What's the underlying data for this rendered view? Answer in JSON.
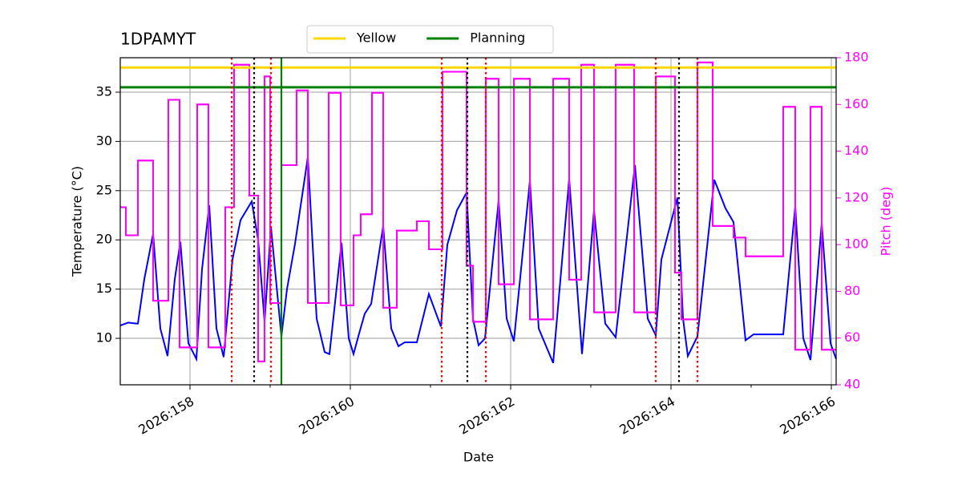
{
  "chart_data": {
    "type": "line",
    "title": "1DPAMYT",
    "xlabel": "Date",
    "ylabel": "Temperature (°C)",
    "y2label": "Pitch (deg)",
    "y2color": "#ff00ff",
    "grid": true,
    "legend": "upper center",
    "xlim": [
      157.13,
      166.06
    ],
    "xticks": [
      {
        "value": 158,
        "label": "2026:158"
      },
      {
        "value": 160,
        "label": "2026:160"
      },
      {
        "value": 162,
        "label": "2026:162"
      },
      {
        "value": 164,
        "label": "2026:164"
      },
      {
        "value": 166,
        "label": "2026:166"
      }
    ],
    "xminorticks": [
      159,
      161,
      163,
      165
    ],
    "ylim": [
      5.28,
      38.5
    ],
    "yticks": [
      10,
      15,
      20,
      25,
      30,
      35
    ],
    "y2lim": [
      40,
      180
    ],
    "y2ticks": [
      40,
      60,
      80,
      100,
      120,
      140,
      160,
      180
    ],
    "series": [
      {
        "color": "#0000ff",
        "x": [
          157.13,
          157.23,
          157.33,
          157.35,
          157.43,
          157.54,
          157.63,
          157.72,
          157.81,
          157.88,
          157.98,
          158.08,
          158.15,
          158.24,
          158.33,
          158.42,
          158.53,
          158.63,
          158.77,
          158.85,
          158.93,
          159.01,
          159.14,
          159.21,
          159.31,
          159.47,
          159.58,
          159.68,
          159.74,
          159.89,
          159.98,
          160.04,
          160.11,
          160.18,
          160.26,
          160.41,
          160.51,
          160.6,
          160.68,
          160.83,
          160.98,
          161.13,
          161.21,
          161.33,
          161.45,
          161.53,
          161.6,
          161.68,
          161.85,
          161.95,
          162.04,
          162.24,
          162.35,
          162.53,
          162.73,
          162.89,
          163.04,
          163.18,
          163.31,
          163.55,
          163.71,
          163.81,
          163.88,
          164.08,
          164.15,
          164.21,
          164.33,
          164.54,
          164.68,
          164.78,
          164.93,
          165.03,
          165.4,
          165.55,
          165.65,
          165.74,
          165.88,
          165.99,
          166.06
        ],
        "values": [
          11.3,
          11.6,
          11.5,
          11.5,
          16,
          20.6,
          11,
          8.2,
          16,
          19.8,
          9.5,
          7.9,
          17,
          23.5,
          11,
          8.1,
          18,
          22,
          23.9,
          20,
          11.7,
          21.3,
          10.2,
          15,
          19.6,
          28.4,
          12,
          8.6,
          8.4,
          19.7,
          10,
          8.4,
          10.5,
          12.5,
          13.5,
          21.4,
          11,
          9.2,
          9.6,
          9.6,
          14.5,
          11.2,
          19.5,
          23,
          24.8,
          12,
          9.3,
          10,
          24,
          12,
          9.7,
          26,
          11,
          7.5,
          26.2,
          8.4,
          23,
          11.5,
          10.1,
          27.6,
          12,
          10.3,
          18,
          24.3,
          12,
          8.2,
          10.2,
          26.1,
          23.2,
          21.8,
          9.8,
          10.4,
          10.4,
          23.4,
          10,
          7.8,
          21.7,
          9.5,
          7.9
        ]
      },
      {
        "color": "#ff00ff",
        "axis": "y2",
        "drawstyle": "steps-post",
        "x": [
          157.13,
          157.2,
          157.35,
          157.54,
          157.73,
          157.87,
          158.09,
          158.23,
          158.44,
          158.55,
          158.74,
          158.85,
          158.93,
          159.0,
          159.14,
          159.33,
          159.47,
          159.73,
          159.88,
          160.04,
          160.13,
          160.27,
          160.41,
          160.58,
          160.83,
          160.98,
          161.15,
          161.45,
          161.53,
          161.69,
          161.85,
          162.04,
          162.24,
          162.53,
          162.73,
          162.88,
          163.04,
          163.31,
          163.54,
          163.81,
          164.05,
          164.13,
          164.33,
          164.52,
          164.78,
          164.93,
          165.4,
          165.55,
          165.74,
          165.88,
          166.06
        ],
        "values": [
          116,
          104,
          136,
          76,
          162,
          56,
          160,
          56,
          116,
          177,
          121,
          50,
          172,
          75,
          134,
          166,
          75,
          165,
          74,
          104,
          113,
          165,
          73,
          106,
          110,
          98,
          174,
          91,
          67,
          171,
          83,
          171,
          68,
          171,
          85,
          177,
          71,
          177,
          71,
          172,
          88,
          68,
          178,
          108,
          103,
          95,
          159,
          55,
          159,
          55,
          55
        ]
      }
    ],
    "hlines": [
      {
        "name": "Yellow",
        "value": 37.5,
        "color": "#ffd700"
      },
      {
        "name": "Planning",
        "value": 35.5,
        "color": "#008000"
      }
    ],
    "vlines": [
      {
        "color": "#ff0000",
        "style": "dotted",
        "x": [
          158.52,
          159.01,
          161.14,
          161.69,
          163.81,
          164.33
        ]
      },
      {
        "color": "#000000",
        "style": "dotted",
        "x": [
          158.8,
          161.46,
          164.1
        ]
      },
      {
        "color": "#008000",
        "style": "solid",
        "x": [
          159.14
        ]
      }
    ]
  }
}
